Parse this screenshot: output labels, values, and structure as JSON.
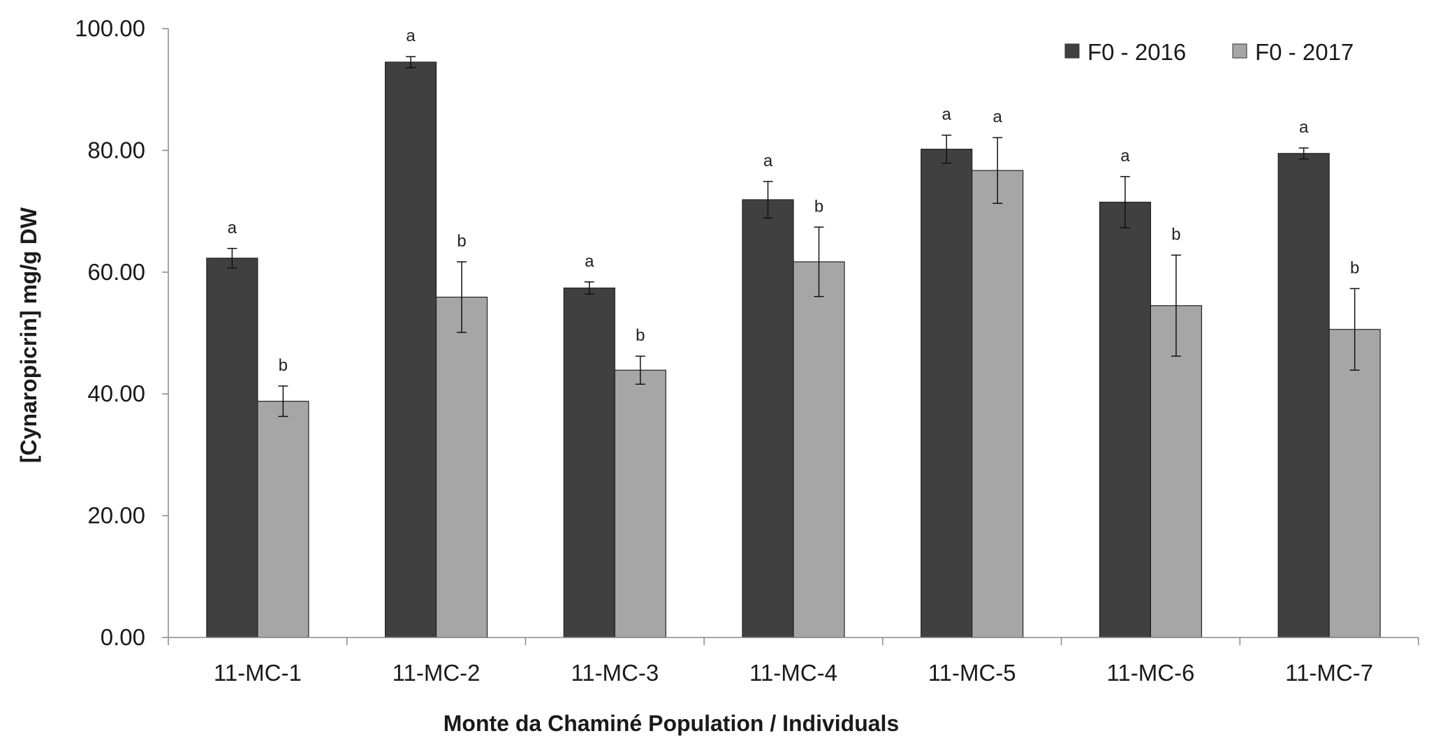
{
  "chart_data": {
    "type": "bar",
    "title": "",
    "xlabel": "Monte da Chaminé Population / Individuals",
    "ylabel": "[Cynaropicrin] mg/g DW",
    "ylim": [
      0,
      100
    ],
    "yticks": [
      0,
      20,
      40,
      60,
      80,
      100
    ],
    "ytick_labels": [
      "0.00",
      "20.00",
      "40.00",
      "60.00",
      "80.00",
      "100.00"
    ],
    "categories": [
      "11-MC-1",
      "11-MC-2",
      "11-MC-3",
      "11-MC-4",
      "11-MC-5",
      "11-MC-6",
      "11-MC-7"
    ],
    "legend_position": "top-right",
    "grid": false,
    "series": [
      {
        "name": "F0 - 2016",
        "color": "#404040",
        "values": [
          62.3,
          94.5,
          57.4,
          71.9,
          80.2,
          71.5,
          79.5
        ],
        "errors": [
          1.6,
          0.9,
          1.0,
          3.0,
          2.3,
          4.2,
          0.9
        ],
        "labels": [
          "a",
          "a",
          "a",
          "a",
          "a",
          "a",
          "a"
        ]
      },
      {
        "name": "F0 - 2017",
        "color": "#a6a6a6",
        "values": [
          38.8,
          55.9,
          43.9,
          61.7,
          76.7,
          54.5,
          50.6
        ],
        "errors": [
          2.5,
          5.8,
          2.3,
          5.7,
          5.4,
          8.3,
          6.7
        ],
        "labels": [
          "b",
          "b",
          "b",
          "b",
          "a",
          "b",
          "b"
        ]
      }
    ]
  }
}
